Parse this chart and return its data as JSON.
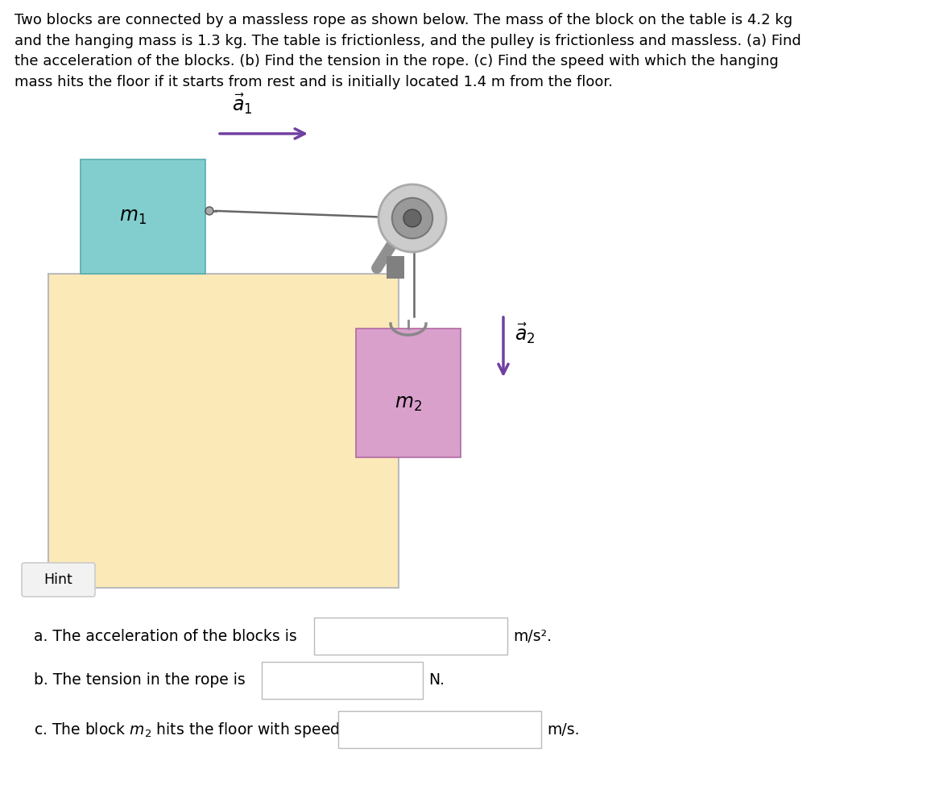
{
  "bg_color": "#ffffff",
  "title_text": "Two blocks are connected by a massless rope as shown below. The mass of the block on the table is 4.2 kg\nand the hanging mass is 1.3 kg. The table is frictionless, and the pulley is frictionless and massless. (a) Find\nthe acceleration of the blocks. (b) Find the tension in the rope. (c) Find the speed with which the hanging\nmass hits the floor if it starts from rest and is initially located 1.4 m from the floor.",
  "title_fontsize": 13.0,
  "table_color": "#fce9b8",
  "table_edge_color": "#bbbbbb",
  "block1_color": "#82cece",
  "block1_edge": "#5aacac",
  "block2_color": "#d9a0cc",
  "block2_edge": "#b06aa0",
  "arrow_color": "#7040a0",
  "rope_color": "#666666",
  "pulley_outer_color": "#cccccc",
  "pulley_outer_edge": "#aaaaaa",
  "pulley_mid_color": "#999999",
  "pulley_mid_edge": "#777777",
  "pulley_inner_color": "#666666",
  "support_color": "#909090",
  "bracket_color": "#808080",
  "hint_bg": "#f2f2f2",
  "hint_border": "#cccccc",
  "input_border": "#bbbbbb",
  "input_bg": "#ffffff",
  "label_a": "a. The acceleration of the blocks is",
  "label_b": "b. The tension in the rope is",
  "label_c": "c. The block $m_2$ hits the floor with speed",
  "unit_a": "m/s².",
  "unit_b": "N.",
  "unit_c": "m/s."
}
